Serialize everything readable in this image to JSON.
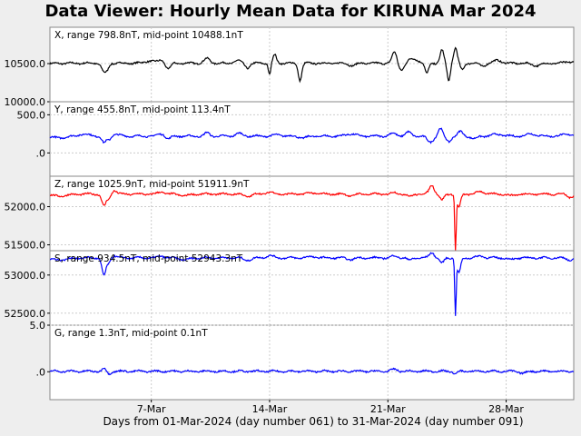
{
  "title": "Data Viewer:  Hourly Mean Data for KIRUNA Mar 2024",
  "xlabel": "Days from 01-Mar-2024 (day number 061) to 31-Mar-2024 (day number 091)",
  "chart_data": {
    "type": "line",
    "x_ticks": [
      {
        "day": 7,
        "label": "7-Mar"
      },
      {
        "day": 14,
        "label": "14-Mar"
      },
      {
        "day": 21,
        "label": "21-Mar"
      },
      {
        "day": 28,
        "label": "28-Mar"
      }
    ],
    "xlim": [
      1,
      32
    ],
    "grid": true,
    "panels": [
      {
        "id": "x",
        "label": "X, range 798.8nT, mid-point 10488.1nT",
        "color": "#000000",
        "ylim": [
          10000,
          10976
        ],
        "yticks": [
          {
            "v": 10500,
            "t": "10500.0"
          },
          {
            "v": 10000,
            "t": "10000.0"
          }
        ],
        "base": 10505,
        "events": [
          [
            1.1,
            -20,
            1.5
          ],
          [
            1.3,
            15,
            1.2
          ],
          [
            4.2,
            -110,
            0.4
          ],
          [
            4.4,
            -60,
            0.3
          ],
          [
            6.9,
            30,
            0.8
          ],
          [
            7.6,
            40,
            0.5
          ],
          [
            8.0,
            -80,
            0.4
          ],
          [
            10.3,
            60,
            0.5
          ],
          [
            12.1,
            35,
            0.5
          ],
          [
            12.7,
            -60,
            0.4
          ],
          [
            14.3,
            110,
            0.3
          ],
          [
            14.0,
            -150,
            0.2
          ],
          [
            15.8,
            -220,
            0.3
          ],
          [
            18.9,
            -30,
            0.6
          ],
          [
            21.4,
            150,
            0.4
          ],
          [
            21.8,
            -90,
            0.5
          ],
          [
            22.5,
            60,
            0.8
          ],
          [
            23.3,
            -140,
            0.3
          ],
          [
            24.2,
            170,
            0.3
          ],
          [
            24.6,
            -230,
            0.25
          ],
          [
            25.0,
            200,
            0.3
          ],
          [
            25.4,
            -90,
            0.3
          ],
          [
            26.6,
            -35,
            0.5
          ],
          [
            27.5,
            40,
            0.6
          ],
          [
            29.8,
            -30,
            0.8
          ],
          [
            31.8,
            20,
            0.8
          ]
        ]
      },
      {
        "id": "y",
        "label": "Y, range 455.8nT, mid-point 113.4nT",
        "color": "#0000ff",
        "ylim": [
          -305,
          671
        ],
        "yticks": [
          {
            "v": 500,
            "t": "500.0"
          },
          {
            "v": 0,
            "t": ".0"
          }
        ],
        "base": 220,
        "events": [
          [
            1.5,
            -20,
            1.5
          ],
          [
            3.0,
            25,
            1.0
          ],
          [
            4.2,
            -90,
            0.35
          ],
          [
            4.5,
            -50,
            0.3
          ],
          [
            4.9,
            25,
            0.6
          ],
          [
            7.6,
            30,
            0.6
          ],
          [
            8.0,
            -40,
            0.4
          ],
          [
            10.3,
            45,
            0.4
          ],
          [
            12.2,
            35,
            0.6
          ],
          [
            14.5,
            20,
            0.6
          ],
          [
            16.0,
            -25,
            0.6
          ],
          [
            18.8,
            30,
            0.8
          ],
          [
            21.3,
            35,
            0.6
          ],
          [
            22.2,
            50,
            0.5
          ],
          [
            23.5,
            -80,
            0.5
          ],
          [
            24.1,
            100,
            0.35
          ],
          [
            24.6,
            -70,
            0.4
          ],
          [
            25.3,
            60,
            0.4
          ],
          [
            26.1,
            -35,
            0.5
          ],
          [
            27.5,
            25,
            0.8
          ],
          [
            29.5,
            30,
            0.8
          ],
          [
            31.7,
            25,
            1.0
          ]
        ]
      },
      {
        "id": "z",
        "label": "Z, range 1025.9nT, mid-point 51911.9nT",
        "color": "#ff0000",
        "ylim": [
          51423,
          52399
        ],
        "yticks": [
          {
            "v": 52000,
            "t": "52000.0"
          },
          {
            "v": 51500,
            "t": "51500.0"
          }
        ],
        "base": 52165,
        "events": [
          [
            1.5,
            -25,
            1.5
          ],
          [
            4.2,
            -160,
            0.35
          ],
          [
            4.5,
            -60,
            0.3
          ],
          [
            4.8,
            50,
            0.4
          ],
          [
            7.6,
            30,
            0.5
          ],
          [
            9.0,
            -20,
            0.8
          ],
          [
            12.7,
            -30,
            0.6
          ],
          [
            14.0,
            25,
            0.6
          ],
          [
            16.5,
            15,
            0.8
          ],
          [
            18.8,
            -20,
            0.6
          ],
          [
            21.4,
            20,
            0.5
          ],
          [
            22.3,
            -35,
            0.4
          ],
          [
            23.6,
            120,
            0.4
          ],
          [
            24.2,
            -80,
            0.35
          ],
          [
            25.0,
            -720,
            0.12
          ],
          [
            25.2,
            -180,
            0.3
          ],
          [
            26.5,
            35,
            0.6
          ],
          [
            28.3,
            -20,
            0.6
          ],
          [
            31.8,
            -40,
            0.5
          ]
        ]
      },
      {
        "id": "s",
        "label": "S, range 934.5nT, mid-point 52943.3nT",
        "color": "#0000ff",
        "ylim": [
          52343,
          53319
        ],
        "yticks": [
          {
            "v": 53000,
            "t": "53000.0"
          },
          {
            "v": 52500,
            "t": "52500.0"
          }
        ],
        "base": 53225,
        "events": [
          [
            1.5,
            -25,
            1.5
          ],
          [
            4.2,
            -230,
            0.35
          ],
          [
            4.5,
            -60,
            0.3
          ],
          [
            4.8,
            30,
            0.4
          ],
          [
            7.6,
            25,
            0.5
          ],
          [
            9.0,
            -25,
            0.8
          ],
          [
            12.7,
            -30,
            0.6
          ],
          [
            14.0,
            30,
            0.6
          ],
          [
            16.5,
            15,
            0.8
          ],
          [
            18.8,
            -20,
            0.6
          ],
          [
            21.4,
            25,
            0.5
          ],
          [
            22.3,
            -30,
            0.4
          ],
          [
            23.6,
            70,
            0.4
          ],
          [
            24.2,
            -70,
            0.35
          ],
          [
            25.0,
            -720,
            0.12
          ],
          [
            25.2,
            -200,
            0.3
          ],
          [
            26.5,
            25,
            0.6
          ],
          [
            28.3,
            -20,
            0.6
          ],
          [
            31.8,
            -30,
            0.5
          ]
        ]
      },
      {
        "id": "g",
        "label": "G, range 1.3nT, mid-point 0.1nT",
        "color": "#0000ff",
        "ylim": [
          -3.0,
          5.0
        ],
        "yticks": [
          {
            "v": 5,
            "t": "5.0"
          },
          {
            "v": 0,
            "t": ".0"
          }
        ],
        "base": 0.05,
        "events": [
          [
            4.2,
            0.3,
            0.3
          ],
          [
            4.5,
            -0.3,
            0.3
          ],
          [
            21.4,
            0.2,
            0.5
          ],
          [
            25.0,
            -0.3,
            0.3
          ],
          [
            29.0,
            -0.2,
            0.6
          ]
        ]
      }
    ]
  }
}
